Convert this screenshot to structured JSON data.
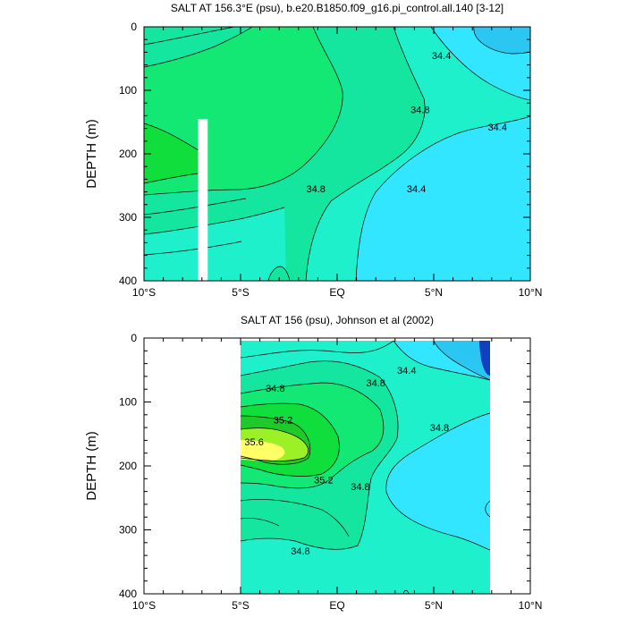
{
  "colors": {
    "level_34_2": "#2bc6f2",
    "level_34_4": "#33e6ff",
    "level_34_6": "#1ff0cc",
    "level_34_8": "#14e6a0",
    "level_35_0": "#13e875",
    "level_35_2": "#0fde3c",
    "level_35_4": "#1fc92a",
    "level_35_6": "#9cf026",
    "level_35_8": "#ffff66",
    "deep_blue": "#1040c0",
    "missing": "#ffffff"
  },
  "chart_data": [
    {
      "type": "contour",
      "title": "SALT AT 156.3°E (psu), b.e20.B1850.f09_g16.pi_control.all.140 [3-12]",
      "ylabel": "DEPTH (m)",
      "xlim": [
        -10,
        10
      ],
      "ylim": [
        400,
        0
      ],
      "x_ticks": [
        -10,
        -5,
        0,
        5,
        10
      ],
      "x_tick_labels": [
        "10°S",
        "5°S",
        "EQ",
        "5°N",
        "10°N"
      ],
      "y_ticks": [
        0,
        100,
        200,
        300,
        400
      ],
      "y_tick_labels": [
        "0",
        "100",
        "200",
        "300",
        "400"
      ],
      "missing_region": {
        "x": [
          -7.2,
          -6.7
        ],
        "y": [
          145,
          400
        ]
      },
      "contour_labels": [
        {
          "text": "34.4",
          "x": 5.4,
          "y": 45
        },
        {
          "text": "34.8",
          "x": 4.3,
          "y": 130
        },
        {
          "text": "34.4",
          "x": 8.3,
          "y": 158
        },
        {
          "text": "34.8",
          "x": -1.1,
          "y": 255
        },
        {
          "text": "34.4",
          "x": 4.1,
          "y": 255
        }
      ]
    },
    {
      "type": "contour",
      "title": "SALT AT 156 (psu), Johnson et al (2002)",
      "ylabel": "DEPTH (m)",
      "xlim": [
        -10,
        10
      ],
      "ylim": [
        400,
        0
      ],
      "x_ticks": [
        -10,
        -5,
        0,
        5,
        10
      ],
      "x_tick_labels": [
        "10°S",
        "5°S",
        "EQ",
        "5°N",
        "10°N"
      ],
      "y_ticks": [
        0,
        100,
        200,
        300,
        400
      ],
      "y_tick_labels": [
        "0",
        "100",
        "200",
        "300",
        "400"
      ],
      "data_extent": {
        "x": [
          -5,
          8
        ]
      },
      "contour_labels": [
        {
          "text": "34.8",
          "x": -3.2,
          "y": 78
        },
        {
          "text": "34.4",
          "x": 3.6,
          "y": 50
        },
        {
          "text": "34.8",
          "x": 2.0,
          "y": 70
        },
        {
          "text": "35.2",
          "x": -2.8,
          "y": 128
        },
        {
          "text": "34.8",
          "x": 5.3,
          "y": 140
        },
        {
          "text": "35.6",
          "x": -4.3,
          "y": 162
        },
        {
          "text": "35.2",
          "x": -0.7,
          "y": 222
        },
        {
          "text": "34.8",
          "x": 1.2,
          "y": 232
        },
        {
          "text": "34.8",
          "x": -1.9,
          "y": 333
        }
      ]
    }
  ]
}
